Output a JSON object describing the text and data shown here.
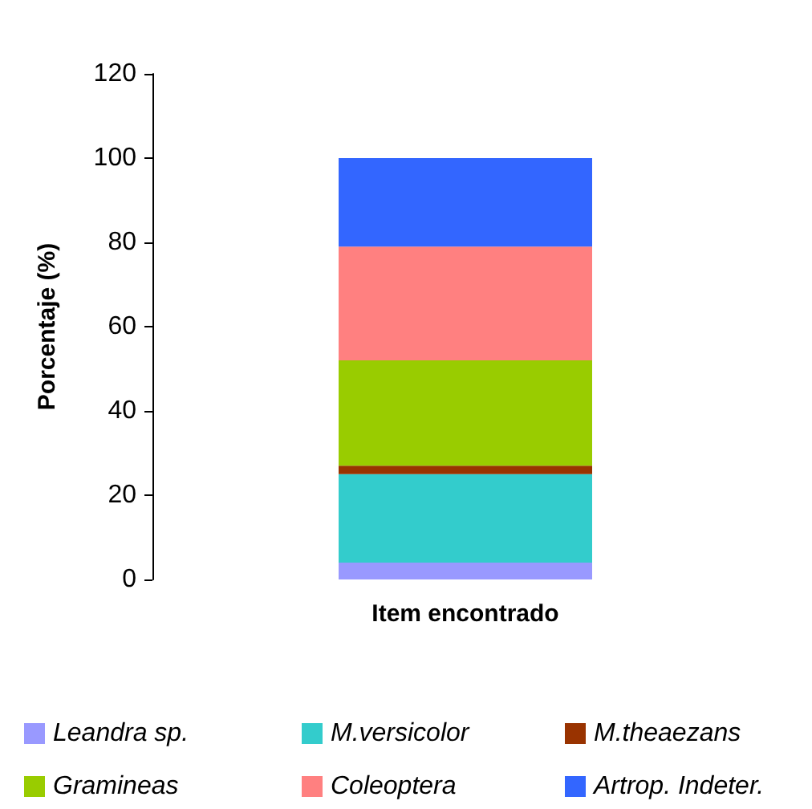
{
  "chart_data": {
    "type": "bar",
    "stacked": true,
    "xlabel": "Item encontrado",
    "ylabel": "Porcentaje (%)",
    "categories": [
      null
    ],
    "series": [
      {
        "name": "Leandra sp.",
        "color": "#9999ff",
        "values": [
          4
        ]
      },
      {
        "name": "M.versicolor",
        "color": "#33cccc",
        "values": [
          21
        ]
      },
      {
        "name": "M.theaezans",
        "color": "#993300",
        "values": [
          2
        ]
      },
      {
        "name": "Gramineas",
        "color": "#99cc00",
        "values": [
          25
        ]
      },
      {
        "name": "Coleoptera",
        "color": "#ff8080",
        "values": [
          27
        ]
      },
      {
        "name": "Artrop. Indeter.",
        "color": "#3366ff",
        "values": [
          21
        ]
      }
    ],
    "ylim": [
      0,
      120
    ],
    "yticks": [
      0,
      20,
      40,
      60,
      80,
      100,
      120
    ],
    "grid": false,
    "legend": "bottom"
  }
}
